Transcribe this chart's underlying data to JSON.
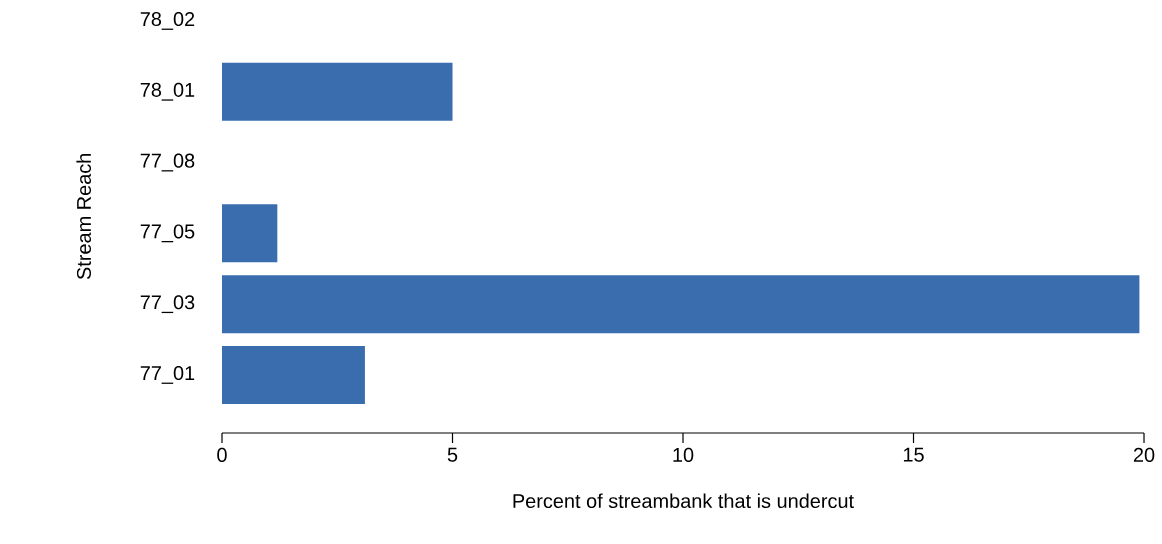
{
  "chart_data": {
    "type": "bar",
    "orientation": "horizontal",
    "categories": [
      "78_02",
      "78_01",
      "77_08",
      "77_05",
      "77_03",
      "77_01"
    ],
    "values": [
      0,
      5,
      0,
      1.2,
      19.9,
      3.1
    ],
    "color": "#3a6dae",
    "xlim": [
      0,
      20
    ],
    "xticks": [
      0,
      5,
      10,
      15,
      20
    ],
    "xlabel": "Percent of streambank that is undercut",
    "ylabel": "Stream Reach"
  }
}
